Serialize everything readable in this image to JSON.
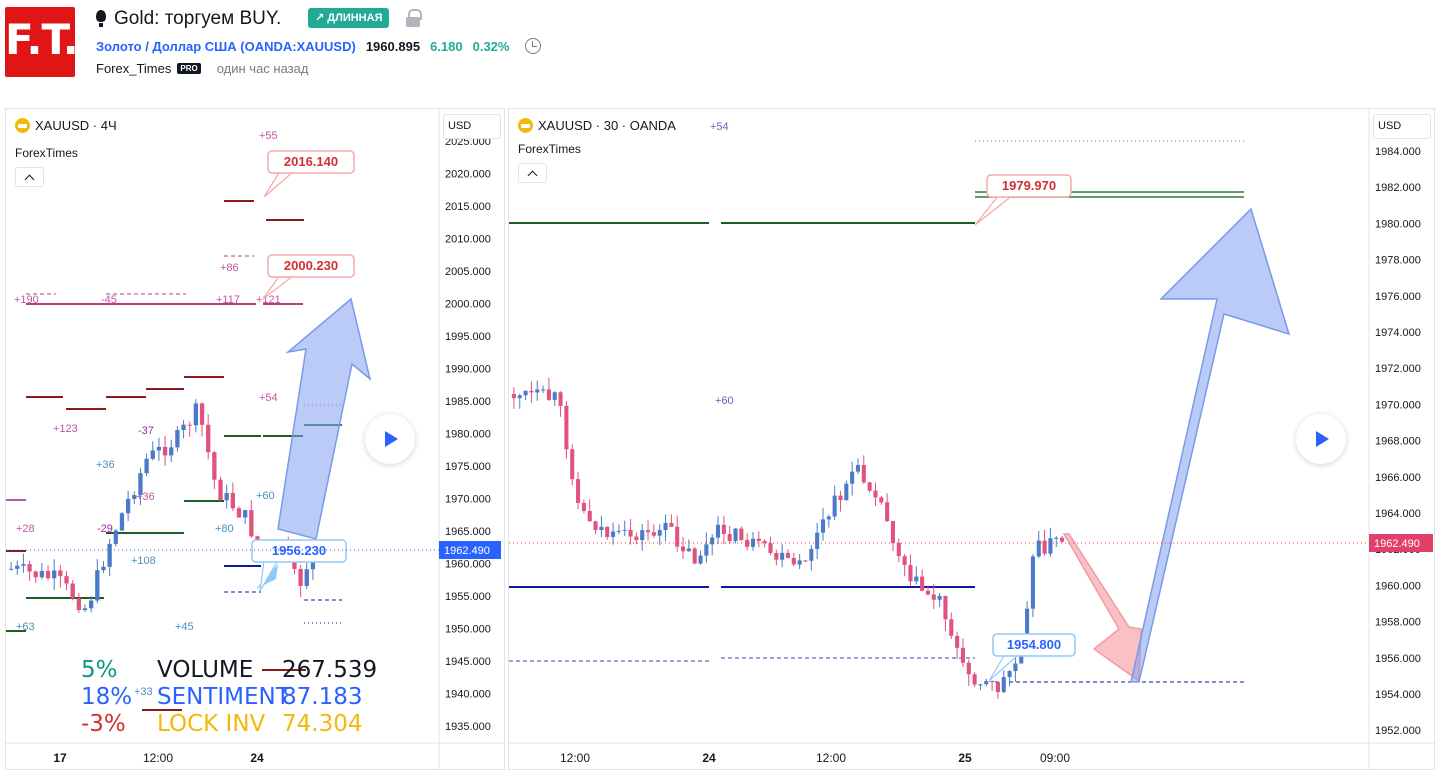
{
  "header": {
    "logo_text": "F.T.",
    "title": "Gold: торгуем BUY.",
    "badge": "↗ ДЛИННАЯ",
    "symbol_name": "Золото / Доллар США",
    "symbol_open": "(",
    "symbol_code": "OANDA:XAUUSD",
    "symbol_close": ")",
    "price": "1960.895",
    "change": "6.180",
    "change_pct": "0.32%",
    "author": "Forex_Times",
    "author_badge": "PRO",
    "published": "один час назад",
    "colors": {
      "accent": "#2962ff",
      "long_badge": "#22ab94",
      "logo": "#e01515"
    }
  },
  "left_chart": {
    "legend": "XAUUSD · 4Ч",
    "indicator": "ForexTimes",
    "currency": "USD",
    "price_ticks": [
      "2025.000",
      "2020.000",
      "2015.000",
      "2010.000",
      "2005.000",
      "2000.000",
      "1995.000",
      "1990.000",
      "1985.000",
      "1980.000",
      "1975.000",
      "1970.000",
      "1965.000",
      "1960.000",
      "1955.000",
      "1950.000",
      "1945.000",
      "1940.000",
      "1935.000"
    ],
    "time_ticks": [
      "17",
      "12:00",
      "24"
    ],
    "last_price": "1962.490",
    "callouts": [
      "2016.140",
      "2000.230",
      "1956.230"
    ],
    "markers": [
      "+55",
      "+86",
      "+190",
      "-45",
      "+117",
      "+121",
      "+54",
      "+123",
      "-37",
      "+36",
      "+36",
      "+60",
      "+28",
      "-29",
      "+80",
      "+108",
      "+63",
      "+45",
      "+33"
    ],
    "stats": [
      {
        "pct": "5%",
        "label": "VOLUME",
        "value": "267.539",
        "color": "#089981",
        "label_color": "#131722"
      },
      {
        "pct": "18%",
        "label": "SENTIMENT",
        "value": "87.183",
        "color": "#2962ff",
        "label_color": "#2962ff"
      },
      {
        "pct": "-3%",
        "label": "LOCK INV",
        "value": "74.304",
        "color": "#d32f2f",
        "label_color": "#f0b90b"
      }
    ]
  },
  "right_chart": {
    "legend": "XAUUSD · 30 · OANDA",
    "indicator": "ForexTimes",
    "currency": "USD",
    "price_ticks": [
      "1984.000",
      "1982.000",
      "1980.000",
      "1978.000",
      "1976.000",
      "1974.000",
      "1972.000",
      "1970.000",
      "1968.000",
      "1966.000",
      "1964.000",
      "1962.000",
      "1960.000",
      "1958.000",
      "1956.000",
      "1954.000",
      "1952.000"
    ],
    "time_ticks": [
      "12:00",
      "24",
      "12:00",
      "25",
      "09:00"
    ],
    "last_price": "1962.490",
    "callouts": [
      "1979.970",
      "1954.800"
    ],
    "markers": [
      "+54",
      "+60"
    ]
  }
}
